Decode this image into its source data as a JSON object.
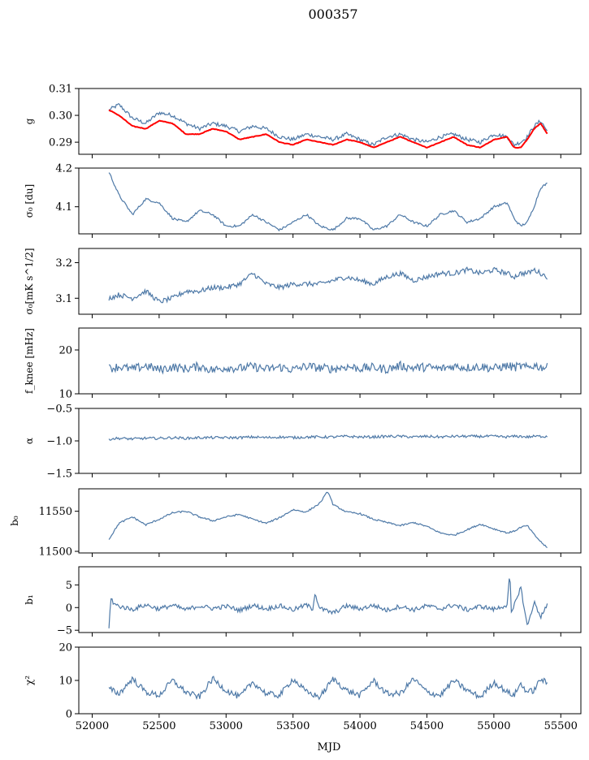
{
  "title": "000357",
  "xlabel": "MJD",
  "colors": {
    "series": "#4e79a7",
    "overlay": "#ff0000",
    "axis": "#000000"
  },
  "chart_data": {
    "type": "line",
    "shared_x": {
      "label": "MJD",
      "range": [
        51900,
        55650
      ],
      "ticks": [
        52000,
        52500,
        53000,
        53500,
        54000,
        54500,
        55000,
        55500
      ],
      "data_range": [
        52125,
        55400
      ]
    },
    "panels": [
      {
        "id": "g",
        "ylabel": "g",
        "ylim": [
          0.2855,
          0.31
        ],
        "yticks": [
          0.29,
          0.3,
          0.31
        ],
        "yticklabels": [
          "0.29",
          "0.30",
          "0.31"
        ],
        "series": [
          {
            "color": "#4e79a7",
            "x": [
              52125,
              52200,
              52300,
              52400,
              52500,
              52600,
              52700,
              52800,
              52900,
              53000,
              53100,
              53200,
              53300,
              53400,
              53500,
              53600,
              53700,
              53800,
              53900,
              54000,
              54100,
              54200,
              54300,
              54400,
              54500,
              54600,
              54700,
              54800,
              54900,
              55000,
              55100,
              55150,
              55200,
              55250,
              55300,
              55350,
              55400
            ],
            "y": [
              0.302,
              0.304,
              0.299,
              0.297,
              0.301,
              0.3,
              0.297,
              0.295,
              0.297,
              0.296,
              0.294,
              0.296,
              0.295,
              0.292,
              0.291,
              0.293,
              0.292,
              0.291,
              0.293,
              0.291,
              0.289,
              0.292,
              0.293,
              0.291,
              0.29,
              0.292,
              0.293,
              0.291,
              0.29,
              0.293,
              0.292,
              0.289,
              0.29,
              0.292,
              0.296,
              0.298,
              0.294
            ]
          },
          {
            "color": "#ff0000",
            "x": [
              52125,
              52200,
              52300,
              52400,
              52500,
              52600,
              52700,
              52800,
              52900,
              53000,
              53100,
              53200,
              53300,
              53400,
              53500,
              53600,
              53700,
              53800,
              53900,
              54000,
              54100,
              54200,
              54300,
              54400,
              54500,
              54600,
              54700,
              54800,
              54900,
              55000,
              55100,
              55150,
              55200,
              55250,
              55300,
              55350,
              55400
            ],
            "y": [
              0.302,
              0.3,
              0.296,
              0.295,
              0.298,
              0.297,
              0.293,
              0.293,
              0.295,
              0.294,
              0.291,
              0.292,
              0.293,
              0.29,
              0.289,
              0.291,
              0.29,
              0.289,
              0.291,
              0.29,
              0.288,
              0.29,
              0.292,
              0.29,
              0.288,
              0.29,
              0.292,
              0.289,
              0.288,
              0.291,
              0.292,
              0.288,
              0.288,
              0.291,
              0.295,
              0.297,
              0.293
            ]
          }
        ]
      },
      {
        "id": "sigma0-du",
        "ylabel": "σ₀ [du]",
        "ylim": [
          4.03,
          4.2
        ],
        "yticks": [
          4.1,
          4.2
        ],
        "yticklabels": [
          "4.1",
          "4.2"
        ],
        "series": [
          {
            "color": "#4e79a7",
            "x": [
              52125,
              52200,
              52300,
              52400,
              52500,
              52600,
              52700,
              52800,
              52900,
              53000,
              53100,
              53200,
              53300,
              53400,
              53500,
              53600,
              53700,
              53800,
              53900,
              54000,
              54100,
              54200,
              54300,
              54400,
              54500,
              54600,
              54700,
              54800,
              54900,
              55000,
              55100,
              55150,
              55200,
              55250,
              55300,
              55350,
              55400
            ],
            "y": [
              4.19,
              4.13,
              4.08,
              4.12,
              4.11,
              4.07,
              4.06,
              4.09,
              4.08,
              4.05,
              4.05,
              4.08,
              4.06,
              4.04,
              4.06,
              4.08,
              4.05,
              4.04,
              4.07,
              4.07,
              4.04,
              4.05,
              4.08,
              4.06,
              4.05,
              4.08,
              4.09,
              4.06,
              4.07,
              4.1,
              4.11,
              4.07,
              4.05,
              4.06,
              4.1,
              4.15,
              4.16
            ]
          }
        ]
      },
      {
        "id": "sigma0-mk",
        "ylabel": "σ₀[mK s^1/2]",
        "ylim": [
          3.055,
          3.24
        ],
        "yticks": [
          3.1,
          3.2
        ],
        "yticklabels": [
          "3.1",
          "3.2"
        ],
        "series": [
          {
            "color": "#4e79a7",
            "x": [
              52125,
              52200,
              52300,
              52400,
              52500,
              52600,
              52700,
              52800,
              52900,
              53000,
              53100,
              53200,
              53300,
              53400,
              53500,
              53600,
              53700,
              53800,
              53900,
              54000,
              54100,
              54200,
              54300,
              54400,
              54500,
              54600,
              54700,
              54800,
              54900,
              55000,
              55100,
              55150,
              55200,
              55250,
              55300,
              55350,
              55400
            ],
            "y": [
              3.1,
              3.11,
              3.1,
              3.12,
              3.09,
              3.1,
              3.12,
              3.12,
              3.13,
              3.13,
              3.14,
              3.17,
              3.14,
              3.13,
              3.14,
              3.14,
              3.14,
              3.15,
              3.16,
              3.15,
              3.14,
              3.16,
              3.17,
              3.15,
              3.16,
              3.17,
              3.17,
              3.18,
              3.17,
              3.18,
              3.17,
              3.16,
              3.17,
              3.17,
              3.18,
              3.17,
              3.16
            ]
          }
        ]
      },
      {
        "id": "fknee",
        "ylabel": "f_knee [mHz]",
        "ylim": [
          10,
          25
        ],
        "yticks": [
          10,
          20
        ],
        "yticklabels": [
          "10",
          "20"
        ],
        "series": [
          {
            "color": "#4e79a7",
            "x": [
              52125,
              52200,
              52300,
              52400,
              52500,
              52600,
              52700,
              52800,
              52900,
              53000,
              53100,
              53200,
              53300,
              53400,
              53500,
              53600,
              53700,
              53800,
              53900,
              54000,
              54100,
              54200,
              54300,
              54400,
              54500,
              54600,
              54700,
              54800,
              54900,
              55000,
              55100,
              55150,
              55200,
              55250,
              55300,
              55350,
              55400
            ],
            "y": [
              15.8,
              16.2,
              15.6,
              16.4,
              15.5,
              16.1,
              15.7,
              16.3,
              15.4,
              16.0,
              15.8,
              16.2,
              15.6,
              16.1,
              15.5,
              16.3,
              15.9,
              15.7,
              16.2,
              15.8,
              16.0,
              15.6,
              16.4,
              15.9,
              16.1,
              15.7,
              16.3,
              16.0,
              16.2,
              15.8,
              16.4,
              16.0,
              16.3,
              15.9,
              16.5,
              16.1,
              16.0
            ]
          }
        ]
      },
      {
        "id": "alpha",
        "ylabel": "α",
        "ylim": [
          -1.5,
          -0.5
        ],
        "yticks": [
          -1.5,
          -1.0,
          -0.5
        ],
        "yticklabels": [
          "−1.5",
          "−1.0",
          "−0.5"
        ],
        "series": [
          {
            "color": "#4e79a7",
            "x": [
              52125,
              52200,
              52300,
              52400,
              52500,
              52600,
              52700,
              52800,
              52900,
              53000,
              53100,
              53200,
              53300,
              53400,
              53500,
              53600,
              53700,
              53800,
              53900,
              54000,
              54100,
              54200,
              54300,
              54400,
              54500,
              54600,
              54700,
              54800,
              54900,
              55000,
              55100,
              55150,
              55200,
              55250,
              55300,
              55350,
              55400
            ],
            "y": [
              -0.97,
              -0.96,
              -0.97,
              -0.96,
              -0.96,
              -0.95,
              -0.96,
              -0.95,
              -0.95,
              -0.95,
              -0.95,
              -0.94,
              -0.95,
              -0.94,
              -0.95,
              -0.94,
              -0.94,
              -0.94,
              -0.93,
              -0.94,
              -0.94,
              -0.93,
              -0.93,
              -0.94,
              -0.93,
              -0.94,
              -0.93,
              -0.93,
              -0.93,
              -0.93,
              -0.94,
              -0.93,
              -0.93,
              -0.94,
              -0.93,
              -0.93,
              -0.93
            ]
          }
        ]
      },
      {
        "id": "b0",
        "ylabel": "b₀",
        "ylim": [
          11498,
          11578
        ],
        "yticks": [
          11500,
          11550
        ],
        "yticklabels": [
          "11500",
          "11550"
        ],
        "series": [
          {
            "color": "#4e79a7",
            "x": [
              52125,
              52200,
              52300,
              52400,
              52500,
              52600,
              52700,
              52800,
              52900,
              53000,
              53100,
              53200,
              53300,
              53400,
              53500,
              53600,
              53700,
              53760,
              53800,
              53900,
              54000,
              54100,
              54200,
              54300,
              54400,
              54500,
              54600,
              54700,
              54800,
              54900,
              55000,
              55100,
              55150,
              55200,
              55250,
              55300,
              55350,
              55400
            ],
            "y": [
              11515,
              11535,
              11543,
              11533,
              11540,
              11548,
              11550,
              11543,
              11538,
              11543,
              11546,
              11540,
              11535,
              11542,
              11552,
              11549,
              11560,
              11575,
              11558,
              11549,
              11547,
              11540,
              11536,
              11532,
              11536,
              11531,
              11523,
              11520,
              11527,
              11534,
              11528,
              11523,
              11525,
              11530,
              11532,
              11521,
              11512,
              11504
            ]
          }
        ]
      },
      {
        "id": "b1",
        "ylabel": "b₁",
        "ylim": [
          -5.5,
          9
        ],
        "yticks": [
          -5,
          0,
          5
        ],
        "yticklabels": [
          "−5",
          "0",
          "5"
        ],
        "series": [
          {
            "color": "#4e79a7",
            "x": [
              52125,
              52140,
              52160,
              52200,
              52300,
              52400,
              52500,
              52600,
              52700,
              52800,
              52900,
              53000,
              53100,
              53200,
              53300,
              53400,
              53500,
              53600,
              53650,
              53660,
              53700,
              53800,
              53900,
              54000,
              54100,
              54200,
              54300,
              54400,
              54500,
              54600,
              54700,
              54800,
              54900,
              55000,
              55100,
              55120,
              55130,
              55200,
              55250,
              55300,
              55350,
              55400
            ],
            "y": [
              -4.6,
              2.4,
              0.8,
              0.3,
              -0.4,
              0.6,
              -0.3,
              0.5,
              -0.5,
              0.4,
              -0.2,
              0.3,
              -0.6,
              0.5,
              -0.3,
              0.4,
              -0.5,
              0.6,
              -0.4,
              3.5,
              -0.2,
              -1.2,
              0.4,
              -0.3,
              0.5,
              -0.6,
              0.3,
              -0.5,
              0.4,
              -0.3,
              0.6,
              -0.5,
              0.3,
              -0.4,
              0.6,
              7.9,
              -1.5,
              4.6,
              -4.2,
              1.2,
              -2.0,
              0.6
            ]
          }
        ]
      },
      {
        "id": "chi2",
        "ylabel": "χ²",
        "ylim": [
          0,
          20
        ],
        "yticks": [
          0,
          10,
          20
        ],
        "yticklabels": [
          "0",
          "10",
          "20"
        ],
        "series": [
          {
            "color": "#4e79a7",
            "x": [
              52125,
              52200,
              52300,
              52400,
              52500,
              52600,
              52700,
              52800,
              52900,
              53000,
              53100,
              53200,
              53300,
              53400,
              53500,
              53600,
              53700,
              53800,
              53900,
              54000,
              54100,
              54200,
              54300,
              54400,
              54500,
              54600,
              54700,
              54800,
              54900,
              55000,
              55100,
              55150,
              55200,
              55250,
              55300,
              55350,
              55400
            ],
            "y": [
              7.5,
              6.0,
              10.5,
              6.5,
              5.5,
              10.0,
              6.5,
              5.0,
              10.5,
              7.0,
              5.0,
              9.5,
              6.0,
              5.5,
              10.5,
              6.5,
              5.0,
              10.5,
              7.0,
              5.5,
              10.0,
              6.0,
              6.0,
              10.5,
              6.5,
              5.5,
              10.0,
              7.0,
              5.0,
              9.5,
              6.5,
              5.5,
              9.0,
              6.5,
              7.0,
              10.5,
              9.0
            ]
          }
        ]
      }
    ]
  }
}
